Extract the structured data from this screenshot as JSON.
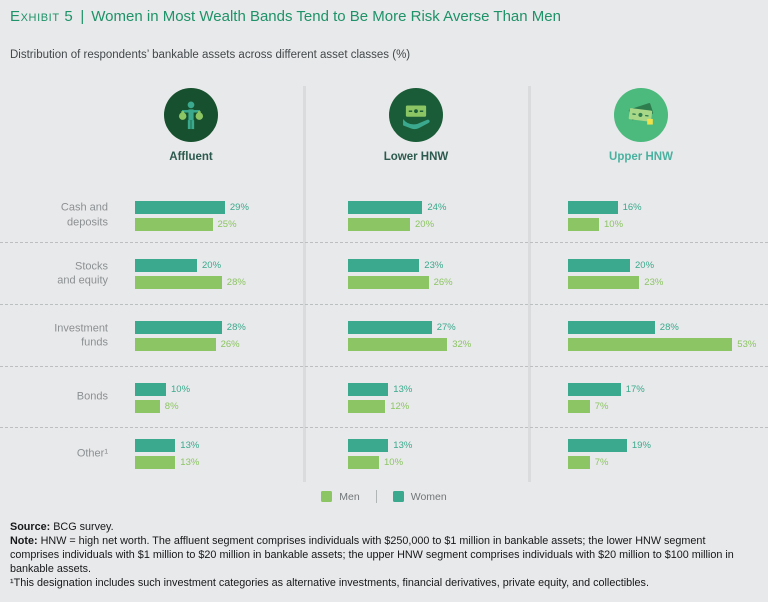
{
  "header": {
    "exhibit_label": "Exhibit 5",
    "separator": "|",
    "title": "Women in Most Wealth Bands Tend to Be More Risk Averse Than Men",
    "subtitle": "Distribution of respondents’ bankable assets across different asset classes (%)"
  },
  "columns": [
    {
      "label": "Affluent",
      "label_color": "#2d5a4e",
      "circle_color": "#17502e",
      "icon": "person-moneybags-icon"
    },
    {
      "label": "Lower HNW",
      "label_color": "#2d5a4e",
      "circle_color": "#1a5c38",
      "icon": "hand-banknote-icon"
    },
    {
      "label": "Upper HNW",
      "label_color": "#4ab1a0",
      "circle_color": "#4cb97d",
      "icon": "banknotes-stack-icon"
    }
  ],
  "rows_display": [
    {
      "label_lines": [
        "Cash and",
        "deposits"
      ]
    },
    {
      "label_lines": [
        "Stocks",
        "and equity"
      ]
    },
    {
      "label_lines": [
        "Investment",
        "funds"
      ]
    },
    {
      "label_lines": [
        "Bonds"
      ]
    },
    {
      "label_lines": [
        "Other¹"
      ]
    }
  ],
  "chart_data": {
    "type": "bar",
    "orientation": "horizontal",
    "title": "Women in Most Wealth Bands Tend to Be More Risk Averse Than Men",
    "subtitle": "Distribution of respondents’ bankable assets across different asset classes (%)",
    "unit": "%",
    "xlim": [
      0,
      60
    ],
    "grid": false,
    "legend_position": "bottom-center",
    "groups": [
      "Affluent",
      "Lower HNW",
      "Upper HNW"
    ],
    "categories": [
      "Cash and deposits",
      "Stocks and equity",
      "Investment funds",
      "Bonds",
      "Other¹"
    ],
    "bar_order_top_to_bottom": [
      "Women",
      "Men"
    ],
    "series": [
      {
        "name": "Women",
        "color": "#3aa98d",
        "values_by_group": [
          [
            29,
            20,
            28,
            10,
            13
          ],
          [
            24,
            23,
            27,
            13,
            13
          ],
          [
            16,
            20,
            28,
            17,
            19
          ]
        ]
      },
      {
        "name": "Men",
        "color": "#8cc563",
        "values_by_group": [
          [
            25,
            28,
            26,
            8,
            13
          ],
          [
            20,
            26,
            32,
            12,
            10
          ],
          [
            10,
            23,
            53,
            7,
            7
          ]
        ]
      }
    ]
  },
  "legend": {
    "items": [
      {
        "label": "Men",
        "color": "#8cc563"
      },
      {
        "label": "Women",
        "color": "#3aa98d"
      }
    ]
  },
  "footer": {
    "source_label": "Source:",
    "source_text": " BCG survey.",
    "note_label": "Note:",
    "note_text": " HNW = high net worth. The affluent segment comprises individuals with $250,000 to $1 million in bankable assets; the lower HNW segment comprises individuals with $1 million to $20 million in bankable assets; the upper HNW segment comprises individuals with $20 million to $100 million in bankable assets.",
    "footnote": "¹This designation includes such investment categories as alternative investments, financial derivatives, private equity, and collectibles."
  }
}
